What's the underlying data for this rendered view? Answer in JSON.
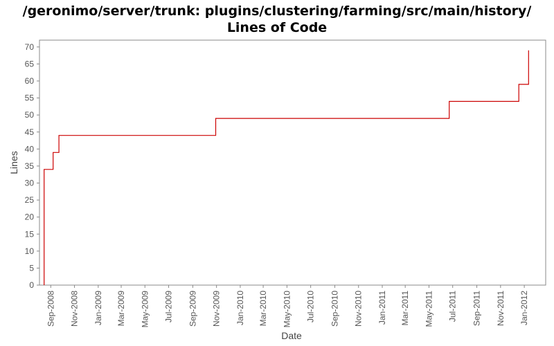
{
  "chart_data": {
    "type": "line",
    "step": true,
    "title_line1": "/geronimo/server/trunk: plugins/clustering/farming/src/main/history/",
    "title_line2": "Lines of Code",
    "xlabel": "Date",
    "ylabel": "Lines",
    "ylim": [
      0,
      72
    ],
    "yticks": [
      0,
      5,
      10,
      15,
      20,
      25,
      30,
      35,
      40,
      45,
      50,
      55,
      60,
      65,
      70
    ],
    "xlim": [
      "2008-08-03",
      "2012-02-25"
    ],
    "xticks": [
      "Sep-2008",
      "Nov-2008",
      "Jan-2009",
      "Mar-2009",
      "May-2009",
      "Jul-2009",
      "Sep-2009",
      "Nov-2009",
      "Jan-2010",
      "Mar-2010",
      "May-2010",
      "Jul-2010",
      "Sep-2010",
      "Nov-2010",
      "Jan-2011",
      "Mar-2011",
      "May-2011",
      "Jul-2011",
      "Sep-2011",
      "Nov-2011",
      "Jan-2012"
    ],
    "grid": false,
    "series": [
      {
        "color": "#cc0000",
        "points": [
          {
            "x": "2008-08-15",
            "y": 0
          },
          {
            "x": "2008-08-15",
            "y": 34
          },
          {
            "x": "2008-09-07",
            "y": 34
          },
          {
            "x": "2008-09-07",
            "y": 39
          },
          {
            "x": "2008-09-22",
            "y": 39
          },
          {
            "x": "2008-09-22",
            "y": 44
          },
          {
            "x": "2009-10-30",
            "y": 44
          },
          {
            "x": "2009-10-30",
            "y": 49
          },
          {
            "x": "2011-06-22",
            "y": 49
          },
          {
            "x": "2011-06-22",
            "y": 54
          },
          {
            "x": "2011-12-18",
            "y": 54
          },
          {
            "x": "2011-12-18",
            "y": 59
          },
          {
            "x": "2012-01-12",
            "y": 59
          },
          {
            "x": "2012-01-12",
            "y": 69
          }
        ]
      }
    ]
  }
}
